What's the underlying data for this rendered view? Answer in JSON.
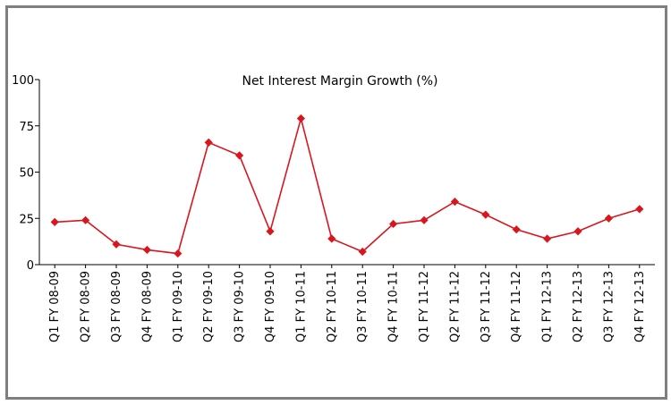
{
  "chart_data": {
    "type": "line",
    "title": "Net Interest Margin Growth (%)",
    "xlabel": "",
    "ylabel": "",
    "ylim": [
      0,
      100
    ],
    "yticks": [
      0,
      25,
      50,
      75,
      100
    ],
    "grid": false,
    "legend": "none",
    "categories": [
      "Q1 FY 08-09",
      "Q2 FY 08-09",
      "Q3 FY 08-09",
      "Q4 FY 08-09",
      "Q1 FY 09-10",
      "Q2 FY 09-10",
      "Q3 FY 09-10",
      "Q4 FY 09-10",
      "Q1 FY 10-11",
      "Q2 FY 10-11",
      "Q3 FY 10-11",
      "Q4 FY 10-11",
      "Q1 FY 11-12",
      "Q2 FY 11-12",
      "Q3 FY 11-12",
      "Q4 FY 11-12",
      "Q1 FY 12-13",
      "Q2 FY 12-13",
      "Q3 FY 12-13",
      "Q4 FY 12-13"
    ],
    "series": [
      {
        "values": [
          23,
          24,
          11,
          8,
          6,
          66,
          59,
          18,
          79,
          14,
          7,
          22,
          24,
          34,
          27,
          19,
          14,
          18,
          25,
          30
        ],
        "color": "#d9161e"
      }
    ]
  }
}
